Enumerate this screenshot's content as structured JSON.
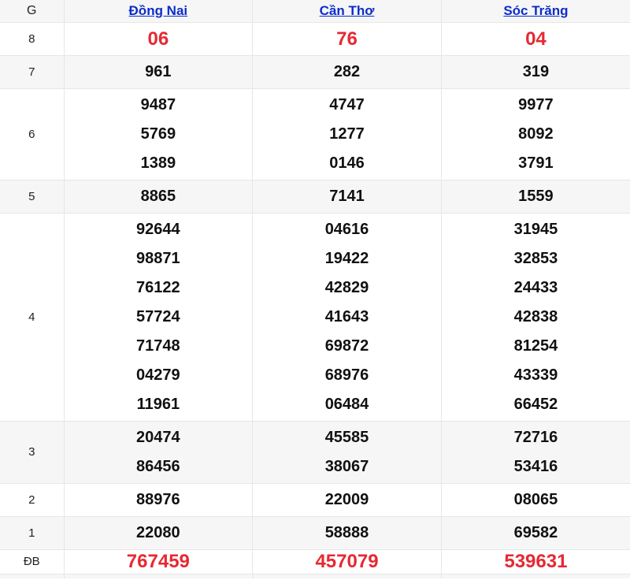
{
  "colors": {
    "accent_red": "#e62833",
    "link_blue": "#0d2dc8",
    "stripe_gray": "#f6f6f7",
    "border_gray": "#e6e6e9"
  },
  "table": {
    "corner_label": "G",
    "columns": [
      "Đồng Nai",
      "Cần Thơ",
      "Sóc Trăng"
    ],
    "rows": [
      {
        "label": "8",
        "cells": [
          [
            "06"
          ],
          [
            "76"
          ],
          [
            "04"
          ]
        ]
      },
      {
        "label": "7",
        "cells": [
          [
            "961"
          ],
          [
            "282"
          ],
          [
            "319"
          ]
        ]
      },
      {
        "label": "6",
        "cells": [
          [
            "9487",
            "5769",
            "1389"
          ],
          [
            "4747",
            "1277",
            "0146"
          ],
          [
            "9977",
            "8092",
            "3791"
          ]
        ]
      },
      {
        "label": "5",
        "cells": [
          [
            "8865"
          ],
          [
            "7141"
          ],
          [
            "1559"
          ]
        ]
      },
      {
        "label": "4",
        "cells": [
          [
            "92644",
            "98871",
            "76122",
            "57724",
            "71748",
            "04279",
            "11961"
          ],
          [
            "04616",
            "19422",
            "42829",
            "41643",
            "69872",
            "68976",
            "06484"
          ],
          [
            "31945",
            "32853",
            "24433",
            "42838",
            "81254",
            "43339",
            "66452"
          ]
        ]
      },
      {
        "label": "3",
        "cells": [
          [
            "20474",
            "86456"
          ],
          [
            "45585",
            "38067"
          ],
          [
            "72716",
            "53416"
          ]
        ]
      },
      {
        "label": "2",
        "cells": [
          [
            "88976"
          ],
          [
            "22009"
          ],
          [
            "08065"
          ]
        ]
      },
      {
        "label": "1",
        "cells": [
          [
            "22080"
          ],
          [
            "58888"
          ],
          [
            "69582"
          ]
        ]
      },
      {
        "label": "ĐB",
        "cells": [
          [
            "767459"
          ],
          [
            "457079"
          ],
          [
            "539631"
          ]
        ]
      }
    ]
  }
}
